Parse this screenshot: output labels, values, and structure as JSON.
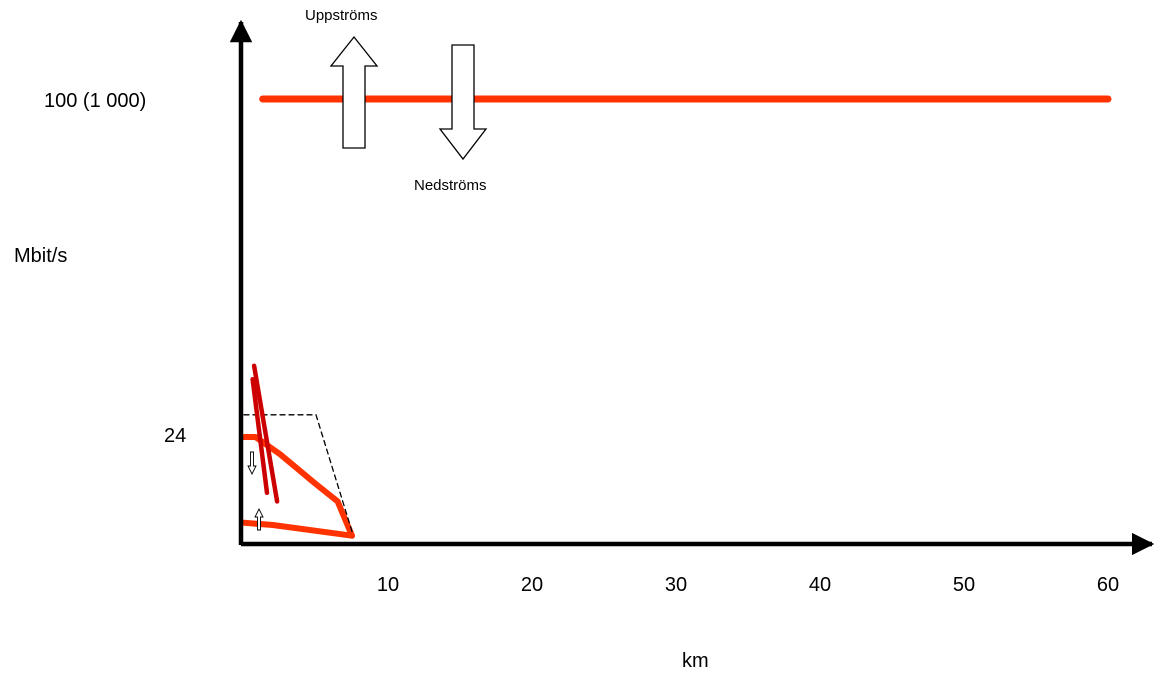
{
  "chart_data": {
    "type": "line",
    "title": "",
    "xlabel": "km",
    "ylabel": "Mbit/s",
    "x_ticks": [
      "10",
      "20",
      "30",
      "40",
      "50",
      "60"
    ],
    "x_tick_values": [
      10,
      20,
      30,
      40,
      50,
      60
    ],
    "y_ticks": [
      "24",
      "100 (1 000)"
    ],
    "xlim": [
      0,
      66
    ],
    "grid": false,
    "legend": "none",
    "annotations": {
      "upstream": "Uppströms",
      "downstream": "Nedströms"
    },
    "series": [
      {
        "kind": "fiber",
        "color": "#FF3300",
        "x": [
          1.3,
          60
        ],
        "y": [
          100,
          100
        ]
      },
      {
        "kind": "dsl-downstream",
        "color": "#FF3300",
        "x": [
          0,
          0.8,
          2.5,
          5.0,
          6.5,
          7.5
        ],
        "y": [
          24,
          24,
          20,
          13,
          9,
          1
        ]
      },
      {
        "kind": "dsl-upstream",
        "color": "#FF3300",
        "x": [
          0,
          2,
          7.5
        ],
        "y": [
          4,
          3.5,
          1
        ]
      },
      {
        "kind": "max-envelope",
        "color": "#000000",
        "style": "dashed",
        "x": [
          0,
          5,
          7.5
        ],
        "y": [
          29,
          29,
          2
        ]
      },
      {
        "kind": "range-marker",
        "color": "#CC0000",
        "x": [
          0.7,
          2.3
        ],
        "y": [
          40,
          9
        ]
      },
      {
        "kind": "range-marker",
        "color": "#CC0000",
        "x": [
          0.6,
          1.6
        ],
        "y": [
          37,
          11
        ]
      }
    ]
  }
}
